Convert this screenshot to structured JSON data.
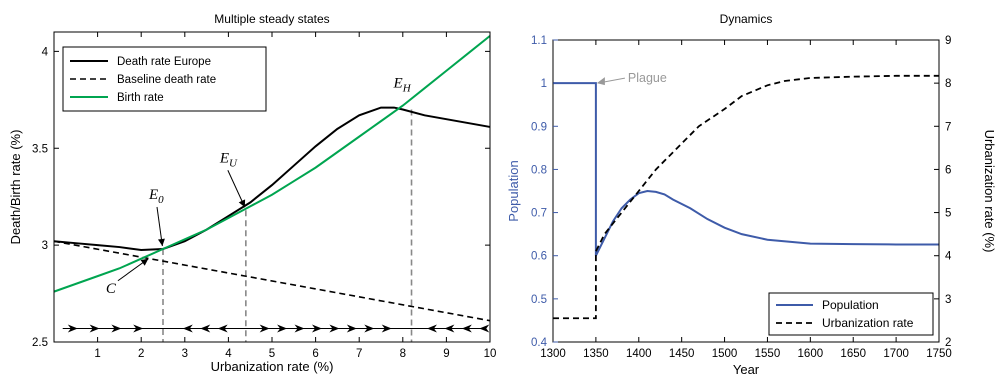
{
  "chart_data": [
    {
      "type": "line",
      "title": "Multiple steady states",
      "xlabel": "Urbanization rate (%)",
      "ylabel": "Death/Birth rate (%)",
      "xlim": [
        0,
        10
      ],
      "ylim": [
        2.5,
        4.1
      ],
      "xticks": [
        "1",
        "2",
        "3",
        "4",
        "5",
        "6",
        "7",
        "8",
        "9",
        "10"
      ],
      "yticks": [
        "2.5",
        "3",
        "3.5",
        "4"
      ],
      "legend_position": "top-left",
      "series": [
        {
          "name": "Death rate Europe",
          "color": "#000000",
          "style": "solid",
          "x": [
            0,
            0.5,
            1.0,
            1.5,
            2.0,
            2.5,
            3.0,
            3.5,
            4.0,
            4.5,
            5.0,
            5.5,
            6.0,
            6.5,
            7.0,
            7.5,
            7.8,
            8.0,
            8.5,
            9.0,
            9.5,
            10.0
          ],
          "y": [
            3.02,
            3.01,
            3.0,
            2.99,
            2.975,
            2.98,
            3.02,
            3.08,
            3.15,
            3.22,
            3.31,
            3.41,
            3.51,
            3.6,
            3.67,
            3.71,
            3.71,
            3.7,
            3.67,
            3.65,
            3.63,
            3.61
          ]
        },
        {
          "name": "Baseline death rate",
          "color": "#000000",
          "style": "dashed",
          "x": [
            0,
            10
          ],
          "y": [
            3.02,
            2.61
          ]
        },
        {
          "name": "Birth rate",
          "color": "#00a550",
          "style": "solid",
          "x": [
            0,
            0.5,
            1.0,
            1.5,
            2.0,
            2.5,
            3.0,
            3.5,
            4.0,
            4.5,
            5.0,
            5.5,
            6.0,
            6.5,
            7.0,
            7.5,
            8.0,
            8.5,
            9.0,
            9.5,
            10.0
          ],
          "y": [
            2.76,
            2.8,
            2.84,
            2.88,
            2.93,
            2.98,
            3.03,
            3.08,
            3.14,
            3.2,
            3.26,
            3.33,
            3.4,
            3.48,
            3.56,
            3.64,
            3.72,
            3.81,
            3.9,
            3.99,
            4.08
          ]
        }
      ],
      "annotations": [
        {
          "label": "E",
          "sub": "0",
          "x": 2.5,
          "y": 2.98
        },
        {
          "label": "E",
          "sub": "U",
          "x": 4.4,
          "y": 3.18
        },
        {
          "label": "E",
          "sub": "H",
          "x": 8.2,
          "y": 3.7
        },
        {
          "label": "C",
          "sub": "",
          "x": 2.2,
          "y": 2.94
        }
      ],
      "steady_state_lines_x": [
        2.5,
        4.4,
        8.2
      ],
      "phase_arrows": {
        "y": 2.57,
        "right_pointing_x": [
          0.5,
          1.0,
          1.5,
          2.0
        ],
        "left_pointing_x": [
          3.0,
          3.4,
          3.8
        ],
        "right_pointing_x2": [
          4.9,
          5.3,
          5.7,
          6.1,
          6.5,
          6.9,
          7.3,
          7.7
        ],
        "left_pointing_x2": [
          8.6,
          9.0,
          9.4,
          9.8
        ]
      }
    },
    {
      "type": "line",
      "title": "Dynamics",
      "xlabel": "Year",
      "ylabel": "Population",
      "ylabel_right": "Urbanization rate (%)",
      "xlim": [
        1300,
        1750
      ],
      "ylim": [
        0.4,
        1.1
      ],
      "ylim_right": [
        2,
        9
      ],
      "xticks": [
        "1300",
        "1350",
        "1400",
        "1450",
        "1500",
        "1550",
        "1600",
        "1650",
        "1700",
        "1750"
      ],
      "yticks": [
        "0.4",
        "0.5",
        "0.6",
        "0.7",
        "0.8",
        "0.9",
        "1",
        "1.1"
      ],
      "yticks_right": [
        "2",
        "3",
        "4",
        "5",
        "6",
        "7",
        "8",
        "9"
      ],
      "legend_position": "bottom-right",
      "annotation": {
        "label": "Plague",
        "x": 1350,
        "y": 1.0,
        "color": "#999999"
      },
      "series": [
        {
          "name": "Population",
          "color": "#3e5ba9",
          "style": "solid",
          "axis": "left",
          "x": [
            1300,
            1350,
            1350,
            1360,
            1370,
            1380,
            1390,
            1400,
            1410,
            1420,
            1430,
            1440,
            1460,
            1480,
            1500,
            1520,
            1550,
            1600,
            1650,
            1700,
            1750
          ],
          "y": [
            1.0,
            1.0,
            0.6,
            0.64,
            0.68,
            0.71,
            0.73,
            0.745,
            0.75,
            0.748,
            0.742,
            0.73,
            0.71,
            0.685,
            0.665,
            0.65,
            0.637,
            0.628,
            0.627,
            0.626,
            0.626
          ]
        },
        {
          "name": "Urbanization rate",
          "color": "#000000",
          "style": "dashed",
          "axis": "right",
          "x": [
            1300,
            1350,
            1350,
            1360,
            1380,
            1400,
            1420,
            1450,
            1470,
            1500,
            1520,
            1550,
            1570,
            1600,
            1650,
            1700,
            1750
          ],
          "y": [
            2.55,
            2.55,
            4.1,
            4.5,
            5.0,
            5.5,
            6.0,
            6.6,
            7.0,
            7.4,
            7.7,
            7.95,
            8.05,
            8.12,
            8.15,
            8.17,
            8.17
          ]
        }
      ]
    }
  ]
}
